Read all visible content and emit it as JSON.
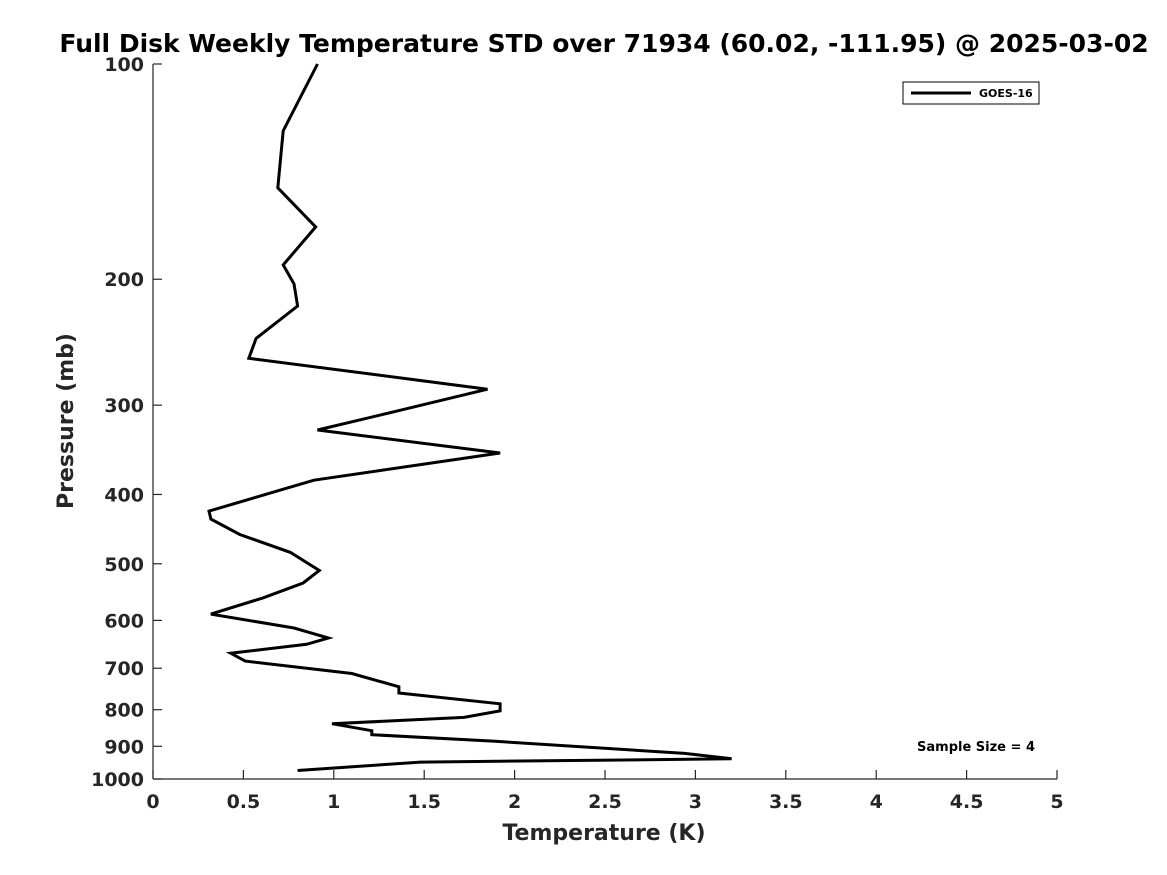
{
  "chart_data": {
    "type": "line",
    "title": "Full Disk Weekly Temperature STD over 71934 (60.02, -111.95) @ 2025-03-02",
    "xlabel": "Temperature (K)",
    "ylabel": "Pressure (mb)",
    "xlim": [
      0,
      5
    ],
    "ylim": [
      100,
      1000
    ],
    "yscale": "log",
    "y_reversed": true,
    "grid": false,
    "legend_position": "top-right",
    "x_ticks": [
      "0",
      "0.5",
      "1",
      "1.5",
      "2",
      "2.5",
      "3",
      "3.5",
      "4",
      "4.5",
      "5"
    ],
    "x_tick_values": [
      0,
      0.5,
      1,
      1.5,
      2,
      2.5,
      3,
      3.5,
      4,
      4.5,
      5
    ],
    "y_ticks": [
      "100",
      "200",
      "300",
      "400",
      "500",
      "600",
      "700",
      "800",
      "900",
      "1000"
    ],
    "y_tick_values": [
      100,
      200,
      300,
      400,
      500,
      600,
      700,
      800,
      900,
      1000
    ],
    "series": [
      {
        "name": "GOES-16",
        "color": "#000000",
        "x": [
          0.91,
          0.72,
          0.69,
          0.9,
          0.72,
          0.78,
          0.8,
          0.57,
          0.53,
          1.85,
          1.32,
          0.91,
          1.92,
          0.89,
          0.31,
          0.32,
          0.48,
          0.76,
          0.92,
          0.83,
          0.61,
          0.32,
          0.78,
          0.97,
          0.85,
          0.43,
          0.51,
          1.1,
          1.36,
          1.36,
          1.92,
          1.92,
          1.72,
          0.99,
          1.21,
          1.21,
          1.88,
          2.94,
          3.2,
          1.48,
          0.8
        ],
        "y": [
          100,
          124,
          149,
          169,
          191,
          203,
          218,
          242,
          258,
          285,
          307,
          325,
          350,
          382,
          422,
          433,
          455,
          482,
          511,
          532,
          558,
          588,
          615,
          635,
          648,
          667,
          684,
          712,
          743,
          758,
          785,
          803,
          820,
          837,
          856,
          867,
          885,
          921,
          937,
          947,
          973
        ]
      }
    ],
    "annotation": "Sample Size = 4"
  }
}
